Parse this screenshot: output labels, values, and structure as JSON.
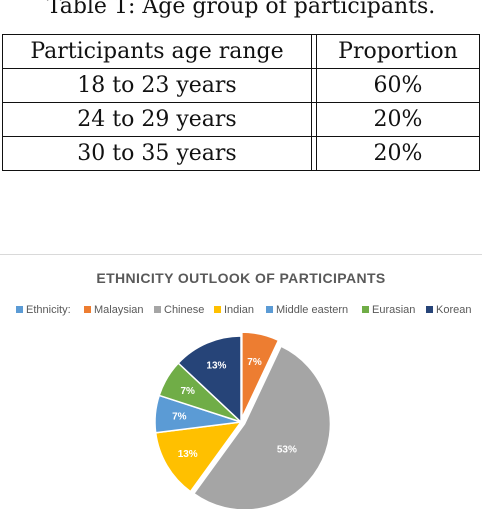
{
  "table": {
    "caption": "Table 1: Age group of participants.",
    "headers": [
      "Participants age range",
      "Proportion"
    ],
    "rows": [
      [
        "18 to 23 years",
        "60%"
      ],
      [
        "24 to 29 years",
        "20%"
      ],
      [
        "30 to 35 years",
        "20%"
      ]
    ]
  },
  "chart_data": {
    "type": "pie",
    "title": "ETHNICITY OUTLOOK OF PARTICIPANTS",
    "legend_placement": "top",
    "legend": [
      {
        "label": "Ethnicity:",
        "color": "#5b9bd5"
      },
      {
        "label": "Malaysian",
        "color": "#ed7d31"
      },
      {
        "label": "Chinese",
        "color": "#a5a5a5"
      },
      {
        "label": "Indian",
        "color": "#ffc000"
      },
      {
        "label": "Middle eastern",
        "color": "#5b9bd5"
      },
      {
        "label": "Eurasian",
        "color": "#70ad47"
      },
      {
        "label": "Korean",
        "color": "#264478"
      }
    ],
    "slices": [
      {
        "label": "Malaysian",
        "value": 7,
        "display": "7%",
        "color": "#ed7d31"
      },
      {
        "label": "Chinese",
        "value": 53,
        "display": "53%",
        "color": "#a5a5a5"
      },
      {
        "label": "Indian",
        "value": 13,
        "display": "13%",
        "color": "#ffc000"
      },
      {
        "label": "Middle eastern",
        "value": 7,
        "display": "7%",
        "color": "#5b9bd5"
      },
      {
        "label": "Eurasian",
        "value": 7,
        "display": "7%",
        "color": "#70ad47"
      },
      {
        "label": "Korean",
        "value": 13,
        "display": "13%",
        "color": "#264478"
      }
    ]
  }
}
